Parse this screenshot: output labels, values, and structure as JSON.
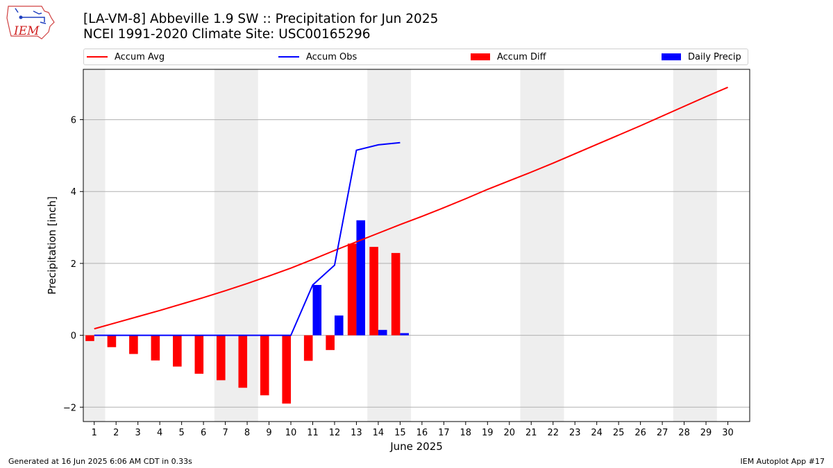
{
  "title_line1": "[LA-VM-8] Abbeville 1.9 SW :: Precipitation for Jun 2025",
  "title_line2": "NCEI 1991-2020 Climate Site: USC00165296",
  "logo_text": "IEM",
  "footer_left": "Generated at 16 Jun 2025 6:06 AM CDT in 0.33s",
  "footer_right": "IEM Autoplot App #17",
  "colors": {
    "avg": "#ff0000",
    "obs": "#0000ff",
    "diff": "#ff0000",
    "daily": "#0000ff",
    "weekend": "#eeeeee",
    "grid": "#b0b0b0"
  },
  "legend": [
    {
      "label": "Accum Avg",
      "kind": "line",
      "color": "#ff0000"
    },
    {
      "label": "Accum Obs",
      "kind": "line",
      "color": "#0000ff"
    },
    {
      "label": "Accum Diff",
      "kind": "box",
      "color": "#ff0000"
    },
    {
      "label": "Daily Precip",
      "kind": "box",
      "color": "#0000ff"
    }
  ],
  "chart_data": {
    "type": "bar",
    "xlabel": "June 2025",
    "ylabel": "Precipitation [inch]",
    "xlim": [
      0.5,
      31
    ],
    "ylim": [
      -2.4,
      7.4
    ],
    "yticks": [
      -2,
      0,
      2,
      4,
      6
    ],
    "days": [
      1,
      2,
      3,
      4,
      5,
      6,
      7,
      8,
      9,
      10,
      11,
      12,
      13,
      14,
      15,
      16,
      17,
      18,
      19,
      20,
      21,
      22,
      23,
      24,
      25,
      26,
      27,
      28,
      29,
      30
    ],
    "weekend_spans": [
      [
        0.5,
        1.5
      ],
      [
        6.5,
        8.5
      ],
      [
        13.5,
        15.5
      ],
      [
        20.5,
        22.5
      ],
      [
        27.5,
        29.5
      ]
    ],
    "grid": "horizontal",
    "legend_position": "top",
    "series": [
      {
        "name": "Accum Avg",
        "kind": "line",
        "values": [
          0.18,
          0.35,
          0.52,
          0.69,
          0.87,
          1.05,
          1.24,
          1.44,
          1.65,
          1.87,
          2.11,
          2.36,
          2.6,
          2.84,
          3.08,
          3.31,
          3.55,
          3.8,
          4.06,
          4.3,
          4.54,
          4.79,
          5.05,
          5.31,
          5.57,
          5.83,
          6.1,
          6.37,
          6.64,
          6.9
        ]
      },
      {
        "name": "Accum Obs",
        "kind": "line",
        "values": [
          0,
          0,
          0,
          0,
          0,
          0,
          0,
          0,
          0,
          0,
          1.4,
          1.95,
          5.15,
          5.3,
          5.36
        ]
      },
      {
        "name": "Accum Diff",
        "kind": "bar",
        "values": [
          -0.16,
          -0.33,
          -0.52,
          -0.7,
          -0.87,
          -1.07,
          -1.25,
          -1.46,
          -1.67,
          -1.9,
          -0.71,
          -0.41,
          2.55,
          2.46,
          2.29
        ]
      },
      {
        "name": "Daily Precip",
        "kind": "bar",
        "values": [
          0,
          0,
          0,
          0,
          0,
          0,
          0,
          0,
          0,
          0,
          1.4,
          0.55,
          3.2,
          0.15,
          0.06
        ]
      }
    ]
  }
}
